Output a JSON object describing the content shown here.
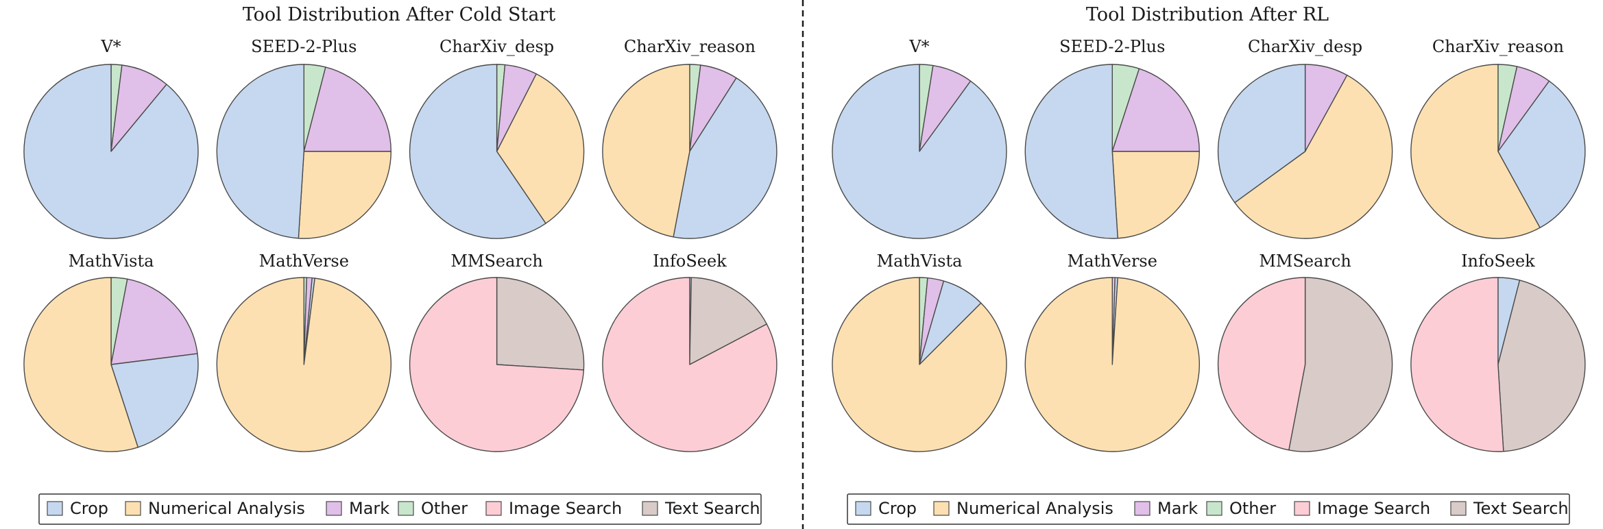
{
  "colors": {
    "Crop": "#c5d8ef",
    "Numerical Analysis": "#fde0b1",
    "Mark": "#e0bfe8",
    "Other": "#c8e6cb",
    "Image Search": "#fdcdd5",
    "Text Search": "#d8cbc8"
  },
  "chart_data": [
    {
      "type": "pie",
      "title": "Tool Distribution After Cold Start",
      "legend": [
        "Crop",
        "Numerical Analysis",
        "Mark",
        "Other",
        "Image Search",
        "Text Search"
      ],
      "pies": [
        {
          "title": "V*",
          "slices": [
            {
              "label": "Other",
              "value": 2
            },
            {
              "label": "Mark",
              "value": 9
            },
            {
              "label": "Crop",
              "value": 89
            }
          ]
        },
        {
          "title": "SEED-2-Plus",
          "slices": [
            {
              "label": "Other",
              "value": 4
            },
            {
              "label": "Mark",
              "value": 21
            },
            {
              "label": "Numerical Analysis",
              "value": 26
            },
            {
              "label": "Crop",
              "value": 49
            }
          ]
        },
        {
          "title": "CharXiv_desp",
          "slices": [
            {
              "label": "Other",
              "value": 1.5
            },
            {
              "label": "Mark",
              "value": 6
            },
            {
              "label": "Numerical Analysis",
              "value": 33
            },
            {
              "label": "Crop",
              "value": 59.5
            }
          ]
        },
        {
          "title": "CharXiv_reason",
          "slices": [
            {
              "label": "Other",
              "value": 2
            },
            {
              "label": "Mark",
              "value": 7
            },
            {
              "label": "Crop",
              "value": 44
            },
            {
              "label": "Numerical Analysis",
              "value": 47
            }
          ]
        },
        {
          "title": "MathVista",
          "slices": [
            {
              "label": "Other",
              "value": 3
            },
            {
              "label": "Mark",
              "value": 20
            },
            {
              "label": "Crop",
              "value": 22
            },
            {
              "label": "Numerical Analysis",
              "value": 55
            }
          ]
        },
        {
          "title": "MathVerse",
          "slices": [
            {
              "label": "Other",
              "value": 0.5
            },
            {
              "label": "Mark",
              "value": 1
            },
            {
              "label": "Crop",
              "value": 0.5
            },
            {
              "label": "Numerical Analysis",
              "value": 98
            }
          ]
        },
        {
          "title": "MMSearch",
          "slices": [
            {
              "label": "Text Search",
              "value": 26
            },
            {
              "label": "Image Search",
              "value": 74
            }
          ]
        },
        {
          "title": "InfoSeek",
          "slices": [
            {
              "label": "Crop",
              "value": 0.3
            },
            {
              "label": "Text Search",
              "value": 17
            },
            {
              "label": "Image Search",
              "value": 82.7
            }
          ]
        }
      ]
    },
    {
      "type": "pie",
      "title": "Tool Distribution After RL",
      "legend": [
        "Crop",
        "Numerical Analysis",
        "Mark",
        "Other",
        "Image Search",
        "Text Search"
      ],
      "pies": [
        {
          "title": "V*",
          "slices": [
            {
              "label": "Other",
              "value": 2.5
            },
            {
              "label": "Mark",
              "value": 7.5
            },
            {
              "label": "Crop",
              "value": 90
            }
          ]
        },
        {
          "title": "SEED-2-Plus",
          "slices": [
            {
              "label": "Other",
              "value": 5
            },
            {
              "label": "Mark",
              "value": 20
            },
            {
              "label": "Numerical Analysis",
              "value": 24
            },
            {
              "label": "Crop",
              "value": 51
            }
          ]
        },
        {
          "title": "CharXiv_desp",
          "slices": [
            {
              "label": "Mark",
              "value": 8
            },
            {
              "label": "Numerical Analysis",
              "value": 57
            },
            {
              "label": "Crop",
              "value": 35
            }
          ]
        },
        {
          "title": "CharXiv_reason",
          "slices": [
            {
              "label": "Other",
              "value": 3.5
            },
            {
              "label": "Mark",
              "value": 6.5
            },
            {
              "label": "Crop",
              "value": 32
            },
            {
              "label": "Numerical Analysis",
              "value": 58
            }
          ]
        },
        {
          "title": "MathVista",
          "slices": [
            {
              "label": "Other",
              "value": 1.5
            },
            {
              "label": "Mark",
              "value": 3
            },
            {
              "label": "Crop",
              "value": 8
            },
            {
              "label": "Numerical Analysis",
              "value": 87.5
            }
          ]
        },
        {
          "title": "MathVerse",
          "slices": [
            {
              "label": "Mark",
              "value": 0.5
            },
            {
              "label": "Crop",
              "value": 0.5
            },
            {
              "label": "Numerical Analysis",
              "value": 99
            }
          ]
        },
        {
          "title": "MMSearch",
          "slices": [
            {
              "label": "Text Search",
              "value": 53
            },
            {
              "label": "Image Search",
              "value": 47
            }
          ]
        },
        {
          "title": "InfoSeek",
          "slices": [
            {
              "label": "Crop",
              "value": 4
            },
            {
              "label": "Text Search",
              "value": 45
            },
            {
              "label": "Image Search",
              "value": 51
            }
          ]
        }
      ]
    }
  ]
}
